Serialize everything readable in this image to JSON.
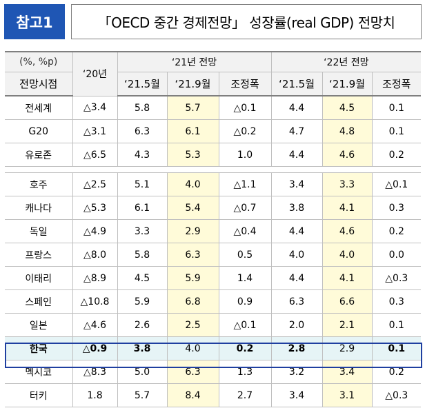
{
  "header": {
    "badge": "참고1",
    "title": "「OECD 중간 경제전망」 성장률(real GDP) 전망치"
  },
  "table": {
    "unit_label": "(%, %p)",
    "row_header_label": "전망시점",
    "year_2020": "‘20년",
    "group_2021": "‘21년 전망",
    "group_2022": "‘22년 전망",
    "sub_headers": [
      "‘21.5월",
      "‘21.9월",
      "조정폭",
      "‘21.5월",
      "‘21.9월",
      "조정폭"
    ],
    "group_a": [
      {
        "name": "전세계",
        "y20": "△3.4",
        "a": "5.8",
        "b": "5.7",
        "c": "△0.1",
        "d": "4.4",
        "e": "4.5",
        "f": "0.1"
      },
      {
        "name": "G20",
        "y20": "△3.1",
        "a": "6.3",
        "b": "6.1",
        "c": "△0.2",
        "d": "4.7",
        "e": "4.8",
        "f": "0.1"
      },
      {
        "name": "유로존",
        "y20": "△6.5",
        "a": "4.3",
        "b": "5.3",
        "c": "1.0",
        "d": "4.4",
        "e": "4.6",
        "f": "0.2"
      }
    ],
    "group_b": [
      {
        "name": "호주",
        "y20": "△2.5",
        "a": "5.1",
        "b": "4.0",
        "c": "△1.1",
        "d": "3.4",
        "e": "3.3",
        "f": "△0.1"
      },
      {
        "name": "캐나다",
        "y20": "△5.3",
        "a": "6.1",
        "b": "5.4",
        "c": "△0.7",
        "d": "3.8",
        "e": "4.1",
        "f": "0.3"
      },
      {
        "name": "독일",
        "y20": "△4.9",
        "a": "3.3",
        "b": "2.9",
        "c": "△0.4",
        "d": "4.4",
        "e": "4.6",
        "f": "0.2"
      },
      {
        "name": "프랑스",
        "y20": "△8.0",
        "a": "5.8",
        "b": "6.3",
        "c": "0.5",
        "d": "4.0",
        "e": "4.0",
        "f": "0.0"
      },
      {
        "name": "이태리",
        "y20": "△8.9",
        "a": "4.5",
        "b": "5.9",
        "c": "1.4",
        "d": "4.4",
        "e": "4.1",
        "f": "△0.3"
      },
      {
        "name": "스페인",
        "y20": "△10.8",
        "a": "5.9",
        "b": "6.8",
        "c": "0.9",
        "d": "6.3",
        "e": "6.6",
        "f": "0.3"
      },
      {
        "name": "일본",
        "y20": "△4.6",
        "a": "2.6",
        "b": "2.5",
        "c": "△0.1",
        "d": "2.0",
        "e": "2.1",
        "f": "0.1"
      }
    ],
    "korea": {
      "name": "한국",
      "y20": "△0.9",
      "a": "3.8",
      "b": "4.0",
      "c": "0.2",
      "d": "2.8",
      "e": "2.9",
      "f": "0.1"
    },
    "group_c": [
      {
        "name": "멕시코",
        "y20": "△8.3",
        "a": "5.0",
        "b": "6.3",
        "c": "1.3",
        "d": "3.2",
        "e": "3.4",
        "f": "0.2"
      },
      {
        "name": "터키",
        "y20": "1.8",
        "a": "5.7",
        "b": "8.4",
        "c": "2.7",
        "d": "3.4",
        "e": "3.1",
        "f": "△0.3"
      }
    ]
  }
}
